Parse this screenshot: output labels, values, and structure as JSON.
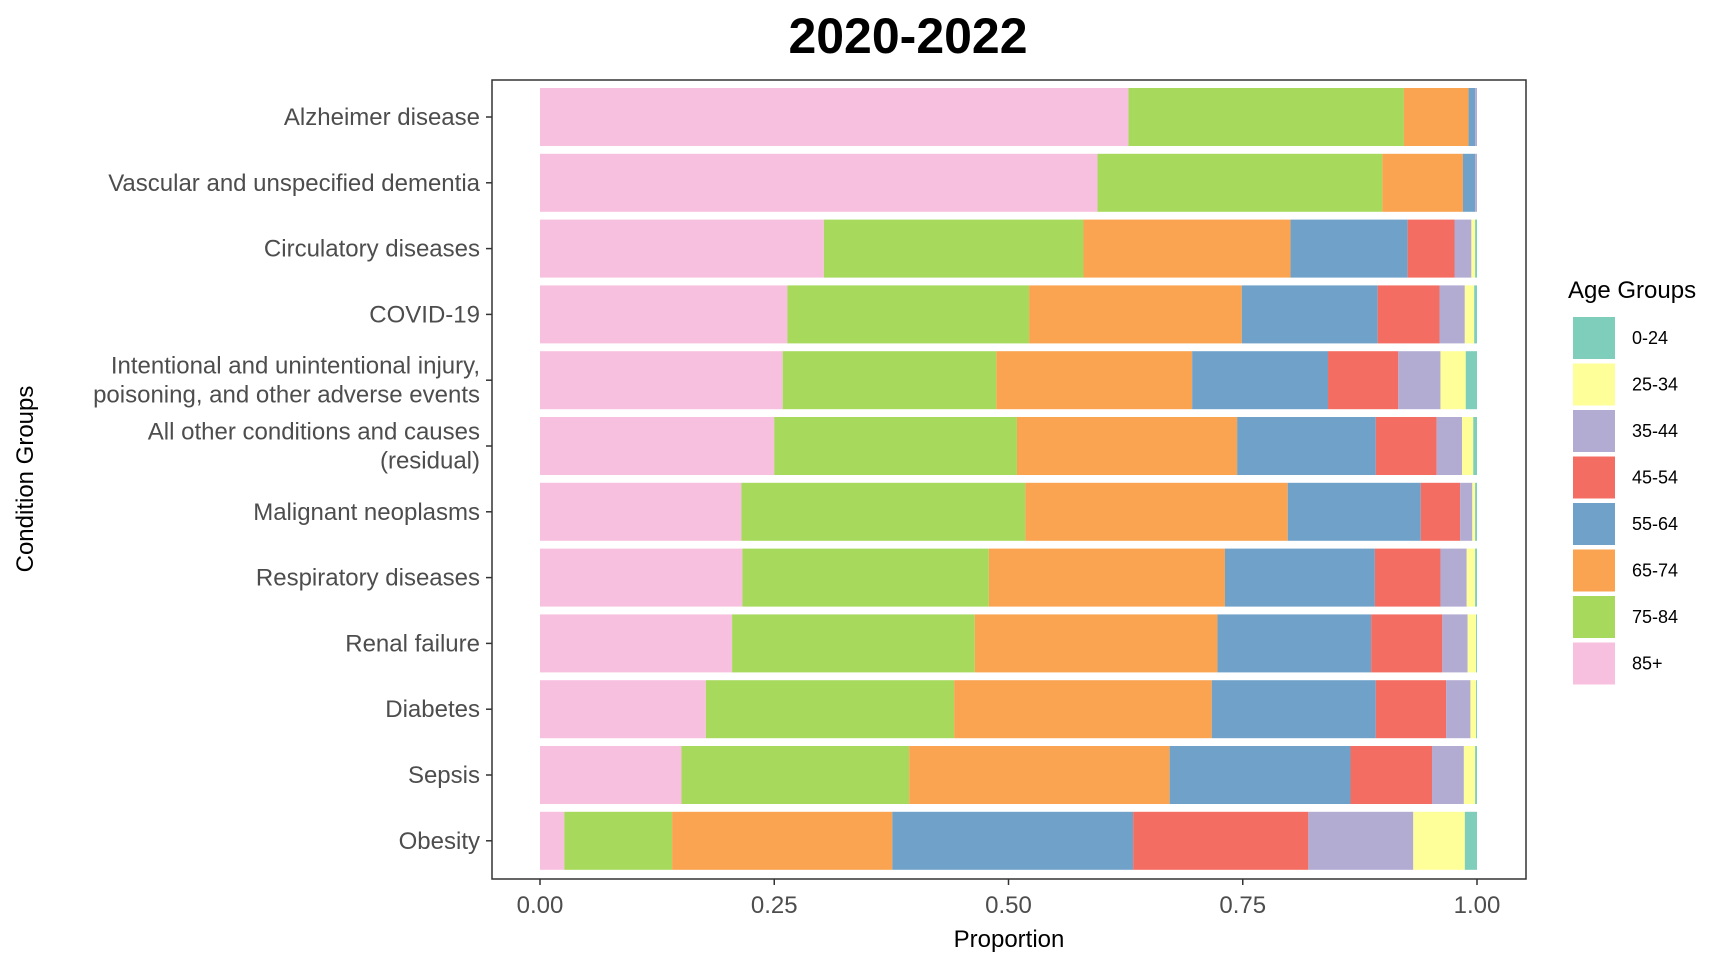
{
  "chart_data": {
    "type": "bar",
    "orientation": "horizontal",
    "stacked": true,
    "title": "2020-2022",
    "xlabel": "Proportion",
    "ylabel": "Condition Groups",
    "xlim": [
      0,
      1
    ],
    "x_ticks": [
      "0.00",
      "0.25",
      "0.50",
      "0.75",
      "1.00"
    ],
    "x_tick_values": [
      0,
      0.25,
      0.5,
      0.75,
      1.0
    ],
    "grid": false,
    "legend_title": "Age Groups",
    "legend_position": "right",
    "categories": [
      [
        "Alzheimer disease"
      ],
      [
        "Vascular and unspecified dementia"
      ],
      [
        "Circulatory diseases"
      ],
      [
        "COVID-19"
      ],
      [
        "Intentional and unintentional injury,",
        "poisoning, and other adverse events"
      ],
      [
        "All other conditions and causes",
        "(residual)"
      ],
      [
        "Malignant neoplasms"
      ],
      [
        "Respiratory diseases"
      ],
      [
        "Renal failure"
      ],
      [
        "Diabetes"
      ],
      [
        "Sepsis"
      ],
      [
        "Obesity"
      ]
    ],
    "series": [
      {
        "name": "0-24",
        "color": "#7fcdbb",
        "values": [
          0.0,
          0.0,
          0.002,
          0.003,
          0.012,
          0.004,
          0.002,
          0.002,
          0.001,
          0.001,
          0.002,
          0.013
        ]
      },
      {
        "name": "25-34",
        "color": "#ffff99",
        "values": [
          0.0,
          0.0,
          0.004,
          0.01,
          0.027,
          0.012,
          0.003,
          0.009,
          0.009,
          0.006,
          0.012,
          0.055
        ]
      },
      {
        "name": "35-44",
        "color": "#b2abd2",
        "values": [
          0.002,
          0.002,
          0.018,
          0.027,
          0.045,
          0.027,
          0.013,
          0.028,
          0.027,
          0.026,
          0.034,
          0.112
        ]
      },
      {
        "name": "45-54",
        "color": "#f46d62",
        "values": [
          0.0,
          0.0,
          0.05,
          0.066,
          0.075,
          0.065,
          0.042,
          0.07,
          0.076,
          0.075,
          0.087,
          0.187
        ]
      },
      {
        "name": "55-64",
        "color": "#6fa1c9",
        "values": [
          0.007,
          0.013,
          0.125,
          0.145,
          0.145,
          0.148,
          0.142,
          0.16,
          0.164,
          0.175,
          0.193,
          0.257
        ]
      },
      {
        "name": "65-74",
        "color": "#faa350",
        "values": [
          0.069,
          0.086,
          0.221,
          0.227,
          0.209,
          0.235,
          0.28,
          0.252,
          0.259,
          0.275,
          0.278,
          0.235
        ]
      },
      {
        "name": "75-84",
        "color": "#a6d95c",
        "values": [
          0.294,
          0.304,
          0.277,
          0.258,
          0.228,
          0.259,
          0.303,
          0.263,
          0.259,
          0.265,
          0.243,
          0.115
        ]
      },
      {
        "name": "85+",
        "color": "#f8c0df",
        "values": [
          0.628,
          0.595,
          0.303,
          0.264,
          0.259,
          0.25,
          0.215,
          0.216,
          0.205,
          0.177,
          0.151,
          0.026
        ]
      }
    ]
  }
}
